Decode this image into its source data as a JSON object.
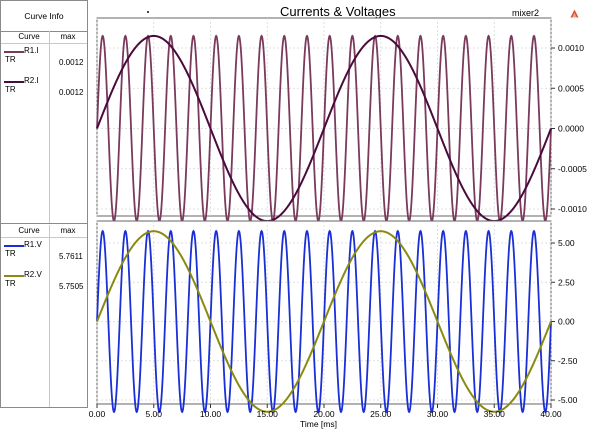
{
  "header": {
    "title": "Currents & Voltages",
    "design_name": "mixer2",
    "logo_icon": "triangle-logo-icon"
  },
  "curve_info": {
    "title": "Curve Info",
    "col_curve": "Curve",
    "col_max": "max",
    "groups": [
      {
        "rows": [
          {
            "name": "R1.I",
            "type": "TR",
            "max": "0.0012",
            "color": "#7a3a5c"
          },
          {
            "name": "R2.I",
            "type": "TR",
            "max": "0.0012",
            "color": "#4a0a3e"
          }
        ]
      },
      {
        "rows": [
          {
            "name": "R1.V",
            "type": "TR",
            "max": "5.7611",
            "color": "#1a2fd6"
          },
          {
            "name": "R2.V",
            "type": "TR",
            "max": "5.7505",
            "color": "#8a8a10"
          }
        ]
      }
    ]
  },
  "chart_data": [
    {
      "type": "line",
      "title": "Currents & Voltages",
      "xlabel": "Time [ms]",
      "ylabel": "",
      "xlim": [
        0,
        40
      ],
      "ylim": [
        -0.001,
        0.0012
      ],
      "grid": true,
      "y_ticks": [
        "0.0010",
        "0.0005",
        "0.0000",
        "-0.0005",
        "-0.0010"
      ],
      "y_tick_values": [
        0.001,
        0.0005,
        0,
        -0.0005,
        -0.001
      ],
      "series": [
        {
          "name": "R1.I",
          "color": "#7a3a5c",
          "frequency_khz": 0.5,
          "amplitude": 0.00115,
          "phase_deg": 0,
          "sample_count": 0
        },
        {
          "name": "R2.I",
          "color": "#4a0a3e",
          "frequency_khz": 0.05,
          "amplitude": 0.00115,
          "phase_deg": 0
        }
      ]
    },
    {
      "type": "line",
      "xlabel": "Time [ms]",
      "ylabel": "",
      "xlim": [
        0,
        40
      ],
      "ylim": [
        -5,
        6.25
      ],
      "grid": true,
      "x_ticks": [
        "0.00",
        "5.00",
        "10.00",
        "15.00",
        "20.00",
        "25.00",
        "30.00",
        "35.00",
        "40.00"
      ],
      "x_tick_values": [
        0,
        5,
        10,
        15,
        20,
        25,
        30,
        35,
        40
      ],
      "y_ticks": [
        "5.00",
        "2.50",
        "0.00",
        "-2.50",
        "-5.00"
      ],
      "y_tick_values": [
        5,
        2.5,
        0,
        -2.5,
        -5
      ],
      "series": [
        {
          "name": "R1.V",
          "color": "#1a2fd6",
          "frequency_khz": 0.5,
          "amplitude": 5.76,
          "phase_deg": 0
        },
        {
          "name": "R2.V",
          "color": "#8a8a10",
          "frequency_khz": 0.05,
          "amplitude": 5.75,
          "phase_deg": 0
        }
      ]
    }
  ]
}
